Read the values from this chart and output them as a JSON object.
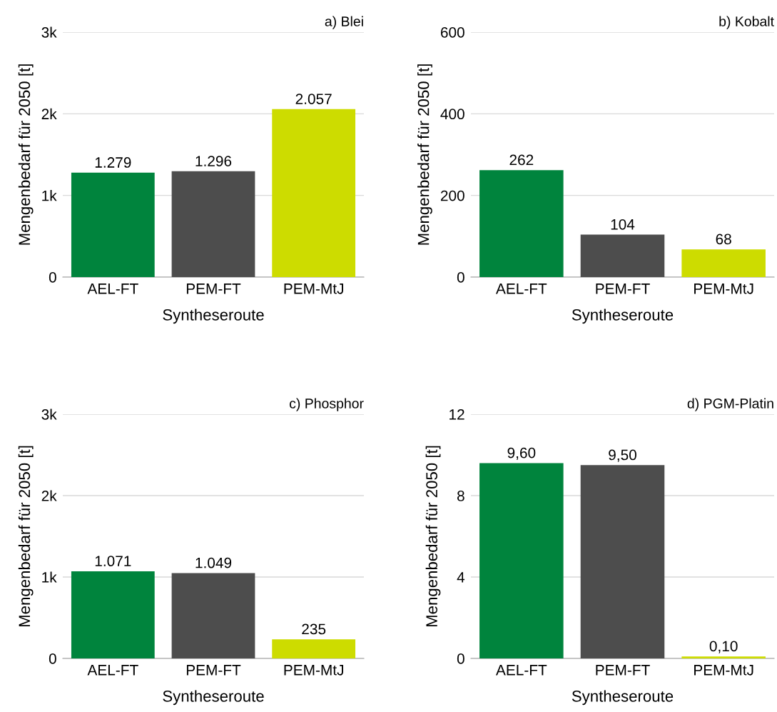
{
  "chart_data": [
    {
      "type": "bar",
      "title": "a) Blei",
      "xlabel": "Syntheseroute",
      "ylabel": "Mengenbedarf für 2050 [t]",
      "categories": [
        "AEL-FT",
        "PEM-FT",
        "PEM-MtJ"
      ],
      "values": [
        1279,
        1296,
        2057
      ],
      "value_labels": [
        "1.279",
        "1.296",
        "2.057"
      ],
      "colors": [
        "#00843d",
        "#4d4d4d",
        "#cddc00"
      ],
      "ylim": [
        0,
        3000
      ],
      "yticks": [
        0,
        {
          "value": 1000,
          "label": "1k"
        },
        {
          "value": 2000,
          "label": "2k"
        },
        {
          "value": 3000,
          "label": "3k"
        }
      ],
      "grid": "y",
      "legend": false
    },
    {
      "type": "bar",
      "title": "b) Kobalt",
      "xlabel": "Syntheseroute",
      "ylabel": "Mengenbedarf für 2050 [t]",
      "categories": [
        "AEL-FT",
        "PEM-FT",
        "PEM-MtJ"
      ],
      "values": [
        262,
        104,
        68
      ],
      "value_labels": [
        "262",
        "104",
        "68"
      ],
      "colors": [
        "#00843d",
        "#4d4d4d",
        "#cddc00"
      ],
      "ylim": [
        0,
        600
      ],
      "yticks": [
        0,
        200,
        400,
        600
      ],
      "grid": "y",
      "legend": false
    },
    {
      "type": "bar",
      "title": "c) Phosphor",
      "xlabel": "Syntheseroute",
      "ylabel": "Mengenbedarf für 2050 [t]",
      "categories": [
        "AEL-FT",
        "PEM-FT",
        "PEM-MtJ"
      ],
      "values": [
        1071,
        1049,
        235
      ],
      "value_labels": [
        "1.071",
        "1.049",
        "235"
      ],
      "colors": [
        "#00843d",
        "#4d4d4d",
        "#cddc00"
      ],
      "ylim": [
        0,
        3000
      ],
      "yticks": [
        0,
        {
          "value": 1000,
          "label": "1k"
        },
        {
          "value": 2000,
          "label": "2k"
        },
        {
          "value": 3000,
          "label": "3k"
        }
      ],
      "grid": "y",
      "legend": false
    },
    {
      "type": "bar",
      "title": "d) PGM-Platin",
      "xlabel": "Syntheseroute",
      "ylabel": "Mengenbedarf für 2050 [t]",
      "categories": [
        "AEL-FT",
        "PEM-FT",
        "PEM-MtJ"
      ],
      "values": [
        9.6,
        9.5,
        0.1
      ],
      "value_labels": [
        "9,60",
        "9,50",
        "0,10"
      ],
      "colors": [
        "#00843d",
        "#4d4d4d",
        "#cddc00"
      ],
      "ylim": [
        0,
        12
      ],
      "yticks": [
        0,
        4,
        8,
        12
      ],
      "grid": "y",
      "legend": false
    }
  ]
}
